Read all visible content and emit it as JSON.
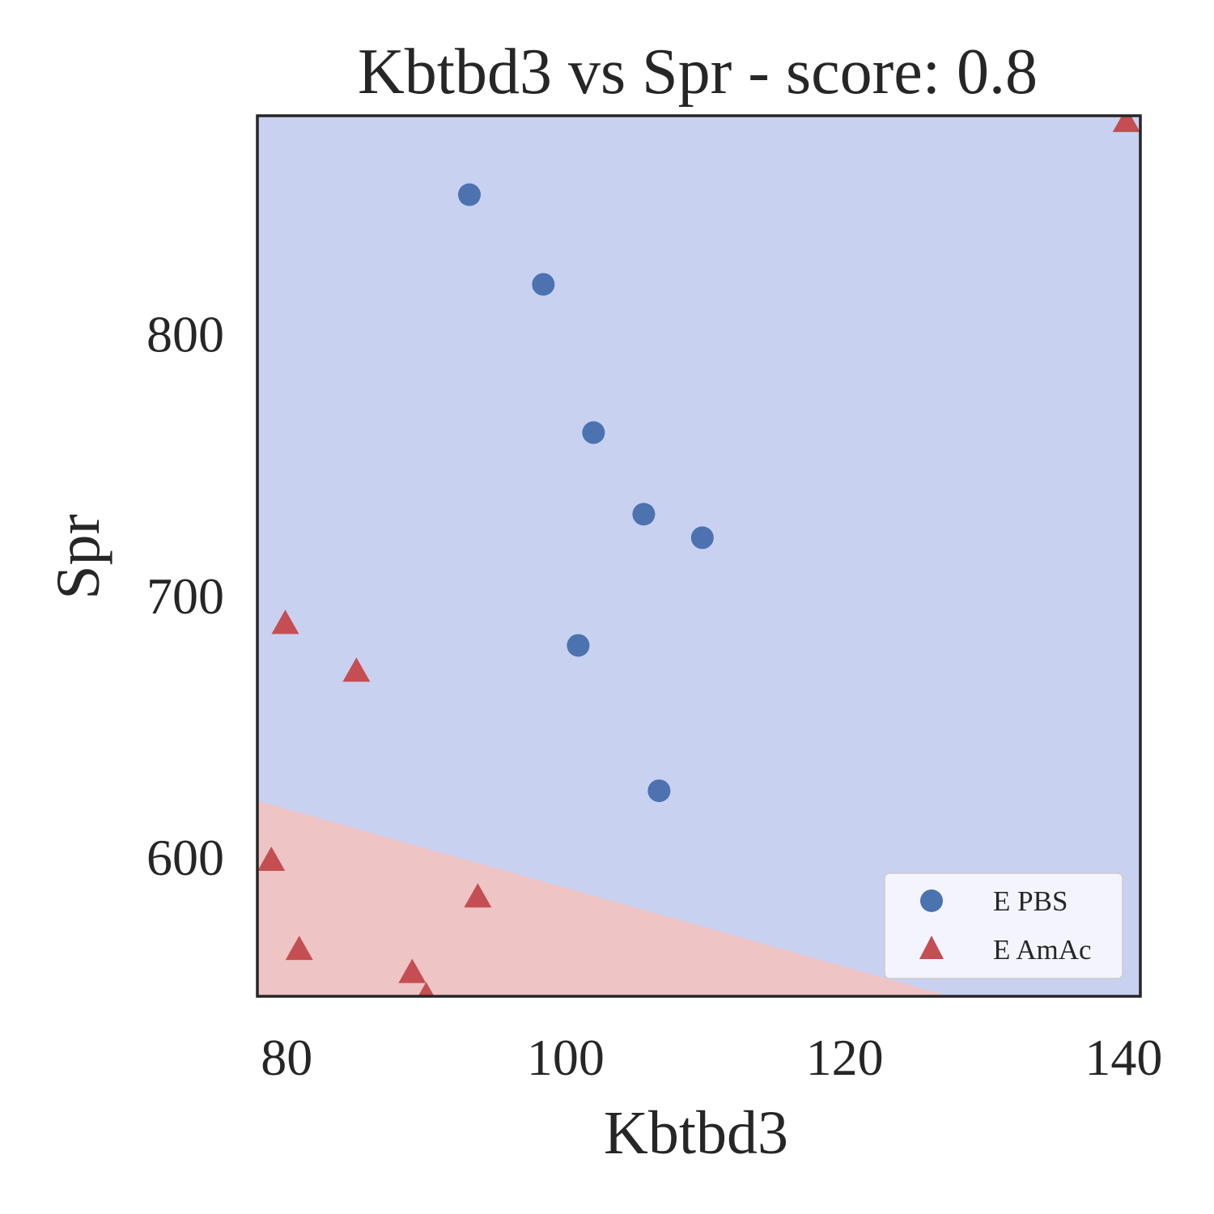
{
  "chart_data": {
    "type": "scatter",
    "title": "Kbtbd3 vs Spr - score: 0.8",
    "xlabel": "Kbtbd3",
    "ylabel": "Spr",
    "xlim": [
      77.9,
      141.2
    ],
    "ylim": [
      546.7,
      883.5
    ],
    "xticks": [
      80,
      100,
      120,
      140
    ],
    "yticks": [
      600,
      700,
      800
    ],
    "grid": false,
    "legend_position": "bottom-right",
    "background_regions": [
      {
        "name": "E PBS region",
        "color": "#c9d1f1"
      },
      {
        "name": "E AmAc region",
        "color": "#eec4c4"
      }
    ],
    "decision_boundary": {
      "points": [
        [
          77.9,
          621.5
        ],
        [
          127.5,
          546.7
        ]
      ]
    },
    "series": [
      {
        "name": "E PBS",
        "marker": "circle",
        "color": "#4c72b0",
        "points": [
          [
            93.1,
            853.3
          ],
          [
            98.4,
            819.0
          ],
          [
            102.0,
            762.3
          ],
          [
            105.6,
            731.1
          ],
          [
            109.8,
            722.1
          ],
          [
            100.9,
            680.9
          ],
          [
            106.7,
            625.3
          ]
        ]
      },
      {
        "name": "E AmAc",
        "marker": "triangle",
        "color": "#c44e52",
        "points": [
          [
            140.2,
            881.0
          ],
          [
            79.9,
            689.0
          ],
          [
            85.0,
            670.7
          ],
          [
            78.9,
            598.4
          ],
          [
            93.7,
            584.4
          ],
          [
            80.9,
            564.3
          ],
          [
            89.0,
            555.5
          ],
          [
            90.0,
            546.6
          ]
        ]
      }
    ]
  }
}
